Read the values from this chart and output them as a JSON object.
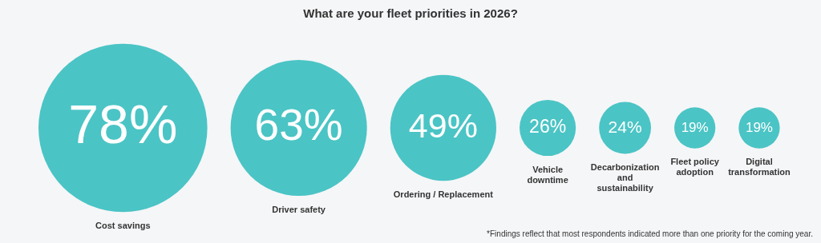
{
  "chart_data": {
    "type": "other",
    "title": "What are your fleet priorities in 2026?",
    "categories": [
      "Cost savings",
      "Driver safety",
      "Ordering / Replacement",
      "Vehicle downtime",
      "Decarbonization and sustainability",
      "Fleet policy adoption",
      "Digital transformation"
    ],
    "values": [
      78,
      63,
      49,
      26,
      24,
      19,
      19
    ],
    "value_labels": [
      "78%",
      "63%",
      "49%",
      "26%",
      "24%",
      "19%",
      "19%"
    ],
    "color": "#4bc4c5",
    "annotations": [
      "*Findings reflect that most respondents indicated more than one priority for the coming year."
    ]
  }
}
